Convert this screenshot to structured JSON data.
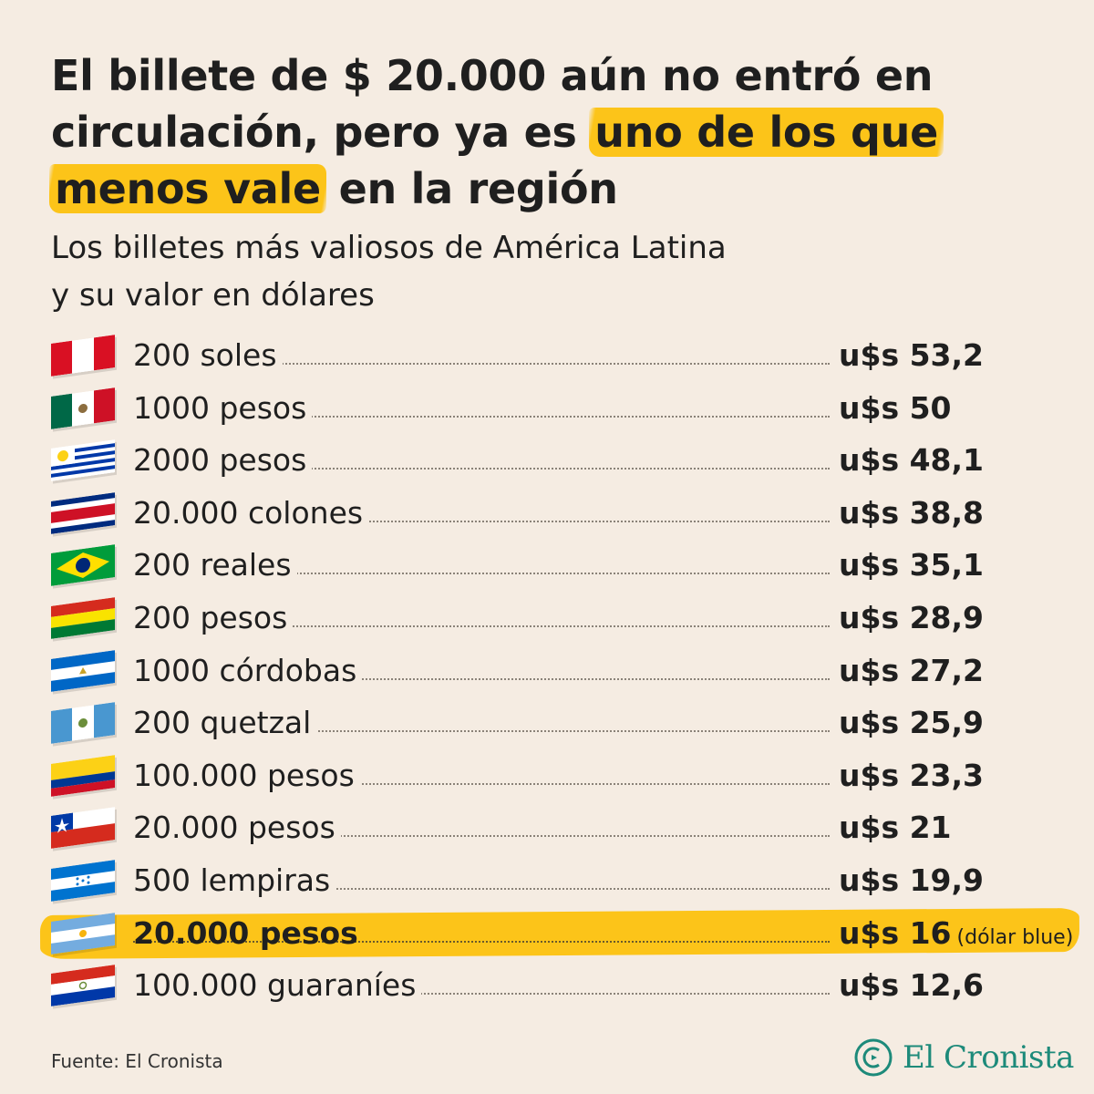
{
  "header": {
    "title_part1": "El billete de $ 20.000 aún no entró en circulación, pero ya es ",
    "title_highlight": "uno de los que menos vale",
    "title_part2": " en la región",
    "subtitle_line1": "Los billetes más valiosos de América Latina",
    "subtitle_line2": "y su valor en dólares"
  },
  "colors": {
    "background": "#f5ece2",
    "highlight": "#fcc419",
    "brand": "#1d8a7a"
  },
  "chart_data": {
    "type": "table",
    "unit": "u$s",
    "items": [
      {
        "country": "peru",
        "label": "200 soles",
        "value_text": "u$s 53,2",
        "value": 53.2
      },
      {
        "country": "mexico",
        "label": "1000 pesos",
        "value_text": "u$s 50",
        "value": 50
      },
      {
        "country": "uruguay",
        "label": "2000 pesos",
        "value_text": "u$s 48,1",
        "value": 48.1
      },
      {
        "country": "costa-rica",
        "label": "20.000 colones",
        "value_text": "u$s 38,8",
        "value": 38.8
      },
      {
        "country": "brazil",
        "label": "200 reales",
        "value_text": "u$s 35,1",
        "value": 35.1
      },
      {
        "country": "bolivia",
        "label": "200 pesos",
        "value_text": "u$s 28,9",
        "value": 28.9
      },
      {
        "country": "nicaragua",
        "label": "1000 córdobas",
        "value_text": "u$s 27,2",
        "value": 27.2
      },
      {
        "country": "guatemala",
        "label": "200 quetzal",
        "value_text": "u$s 25,9",
        "value": 25.9
      },
      {
        "country": "colombia",
        "label": "100.000 pesos",
        "value_text": "u$s 23,3",
        "value": 23.3
      },
      {
        "country": "chile",
        "label": "20.000 pesos",
        "value_text": "u$s 21",
        "value": 21
      },
      {
        "country": "honduras",
        "label": "500 lempiras",
        "value_text": "u$s 19,9",
        "value": 19.9
      },
      {
        "country": "argentina",
        "label": "20.000 pesos",
        "value_text": "u$s 16",
        "value": 16,
        "note": "(dólar blue)",
        "highlight": true
      },
      {
        "country": "paraguay",
        "label": "100.000 guaraníes",
        "value_text": "u$s 12,6",
        "value": 12.6
      }
    ]
  },
  "footer": {
    "source": "Fuente: El Cronista",
    "brand": "El Cronista",
    "brand_icon": "cronista-logo-icon"
  }
}
